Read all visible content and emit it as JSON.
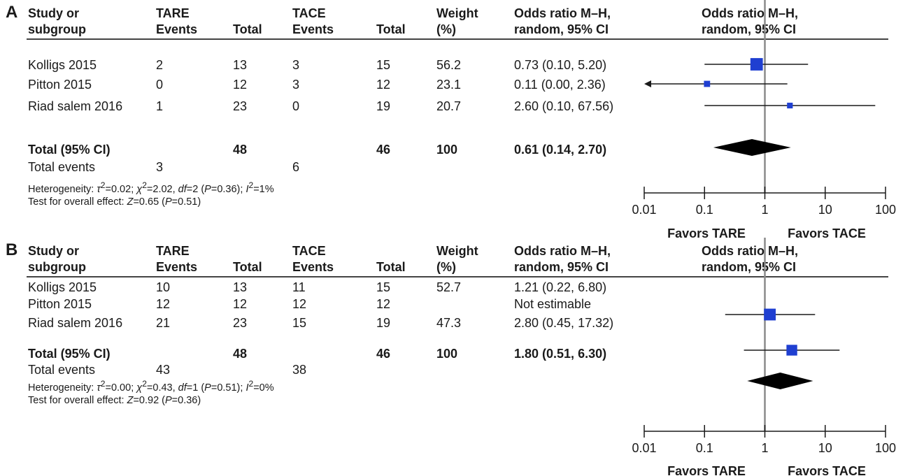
{
  "columns": {
    "study": [
      "Study or",
      "subgroup"
    ],
    "tare": [
      "TARE",
      "Events"
    ],
    "total_tare": "Total",
    "tace": [
      "TACE",
      "Events"
    ],
    "total_tace": "Total",
    "weight": [
      "Weight",
      "(%)"
    ],
    "or_text": [
      "Odds ratio M–H,",
      "random, 95% CI"
    ],
    "or_plot": [
      "Odds ratio M–H,",
      "random, 95% CI"
    ]
  },
  "chart_data": [
    {
      "type": "forest",
      "panel": "A",
      "x_scale": "log",
      "xlim": [
        0.01,
        100
      ],
      "x_ticks": [
        "0.01",
        "0.1",
        "1",
        "10",
        "100"
      ],
      "x_tick_values": [
        0.01,
        0.1,
        1,
        10,
        100
      ],
      "favors_left": "Favors TARE",
      "favors_right": "Favors TACE",
      "marker_color": "#1f3fd1",
      "studies": [
        {
          "name": "Kolligs 2015",
          "tare_events": "2",
          "tare_total": "13",
          "tace_events": "3",
          "tace_total": "15",
          "weight": "56.2",
          "or_text": "0.73 (0.10, 5.20)",
          "or": 0.73,
          "ci_low": 0.1,
          "ci_high": 5.2,
          "arrow_left": false
        },
        {
          "name": "Pitton 2015",
          "tare_events": "0",
          "tare_total": "12",
          "tace_events": "3",
          "tace_total": "12",
          "weight": "23.1",
          "or_text": "0.11 (0.00, 2.36)",
          "or": 0.11,
          "ci_low": 0.001,
          "ci_high": 2.36,
          "arrow_left": true
        },
        {
          "name": "Riad salem 2016",
          "tare_events": "1",
          "tare_total": "23",
          "tace_events": "0",
          "tace_total": "19",
          "weight": "20.7",
          "or_text": "2.60 (0.10, 67.56)",
          "or": 2.6,
          "ci_low": 0.1,
          "ci_high": 67.56,
          "arrow_left": false
        }
      ],
      "total": {
        "label": "Total (95% CI)",
        "tare_total": "48",
        "tace_total": "46",
        "weight": "100",
        "or_text": "0.61 (0.14, 2.70)",
        "or": 0.61,
        "ci_low": 0.14,
        "ci_high": 2.7
      },
      "total_events": {
        "label": "Total events",
        "tare": "3",
        "tace": "6"
      },
      "heterogeneity": {
        "label": "Heterogeneity:",
        "tau2": "0.02",
        "chi2": "2.02",
        "df": "2",
        "p": "0.36",
        "i2": "1%"
      },
      "overall_effect": {
        "label": "Test for overall effect:",
        "z": "0.65",
        "p": "0.51"
      }
    },
    {
      "type": "forest",
      "panel": "B",
      "x_scale": "log",
      "xlim": [
        0.01,
        100
      ],
      "x_ticks": [
        "0.01",
        "0.1",
        "1",
        "10",
        "100"
      ],
      "x_tick_values": [
        0.01,
        0.1,
        1,
        10,
        100
      ],
      "favors_left": "Favors TARE",
      "favors_right": "Favors TACE",
      "marker_color": "#1f3fd1",
      "studies": [
        {
          "name": "Kolligs 2015",
          "tare_events": "10",
          "tare_total": "13",
          "tace_events": "11",
          "tace_total": "15",
          "weight": "52.7",
          "or_text": "1.21 (0.22, 6.80)",
          "or": 1.21,
          "ci_low": 0.22,
          "ci_high": 6.8,
          "arrow_left": false
        },
        {
          "name": "Pitton 2015",
          "tare_events": "12",
          "tare_total": "12",
          "tace_events": "12",
          "tace_total": "12",
          "weight": "",
          "or_text": "Not estimable",
          "or": null,
          "ci_low": null,
          "ci_high": null,
          "arrow_left": false
        },
        {
          "name": "Riad salem 2016",
          "tare_events": "21",
          "tare_total": "23",
          "tace_events": "15",
          "tace_total": "19",
          "weight": "47.3",
          "or_text": "2.80 (0.45, 17.32)",
          "or": 2.8,
          "ci_low": 0.45,
          "ci_high": 17.32,
          "arrow_left": false
        }
      ],
      "total": {
        "label": "Total (95% CI)",
        "tare_total": "48",
        "tace_total": "46",
        "weight": "100",
        "or_text": "1.80 (0.51, 6.30)",
        "or": 1.8,
        "ci_low": 0.51,
        "ci_high": 6.3
      },
      "total_events": {
        "label": "Total events",
        "tare": "43",
        "tace": "38"
      },
      "heterogeneity": {
        "label": "Heterogeneity:",
        "tau2": "0.00",
        "chi2": "0.43",
        "df": "1",
        "p": "0.51",
        "i2": "0%"
      },
      "overall_effect": {
        "label": "Test for overall effect:",
        "z": "0.92",
        "p": "0.36"
      }
    }
  ]
}
